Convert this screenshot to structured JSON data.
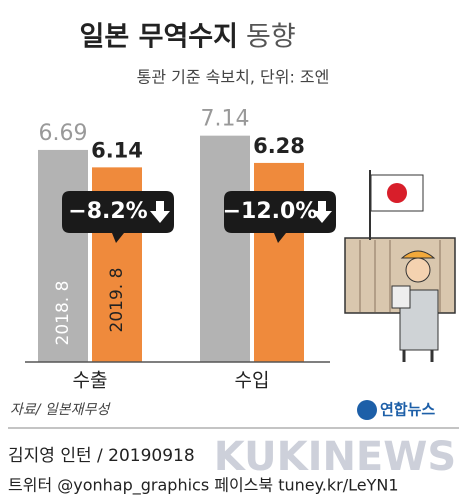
{
  "chart_data": {
    "type": "bar",
    "title": "일본 무역수지",
    "title_suffix": "동향",
    "subtitle": "통관 기준 속보치, 단위: 조엔",
    "categories": [
      "수출",
      "수입"
    ],
    "series": [
      {
        "name": "2018. 8",
        "color": "#b3b3b3",
        "values": [
          6.69,
          7.14
        ]
      },
      {
        "name": "2019. 8",
        "color": "#ef8a3c",
        "values": [
          6.14,
          6.28
        ]
      }
    ],
    "annotations": [
      "−8.2%",
      "−12.0%"
    ],
    "source": "자료/ 일본재무성"
  },
  "footer": {
    "logo": "연합뉴스",
    "byline": "김지영 인턴 / 20190918",
    "social": "트위터 @yonhap_graphics 페이스북 tuney.kr/LeYN1",
    "watermark": "KUKINEWS"
  }
}
